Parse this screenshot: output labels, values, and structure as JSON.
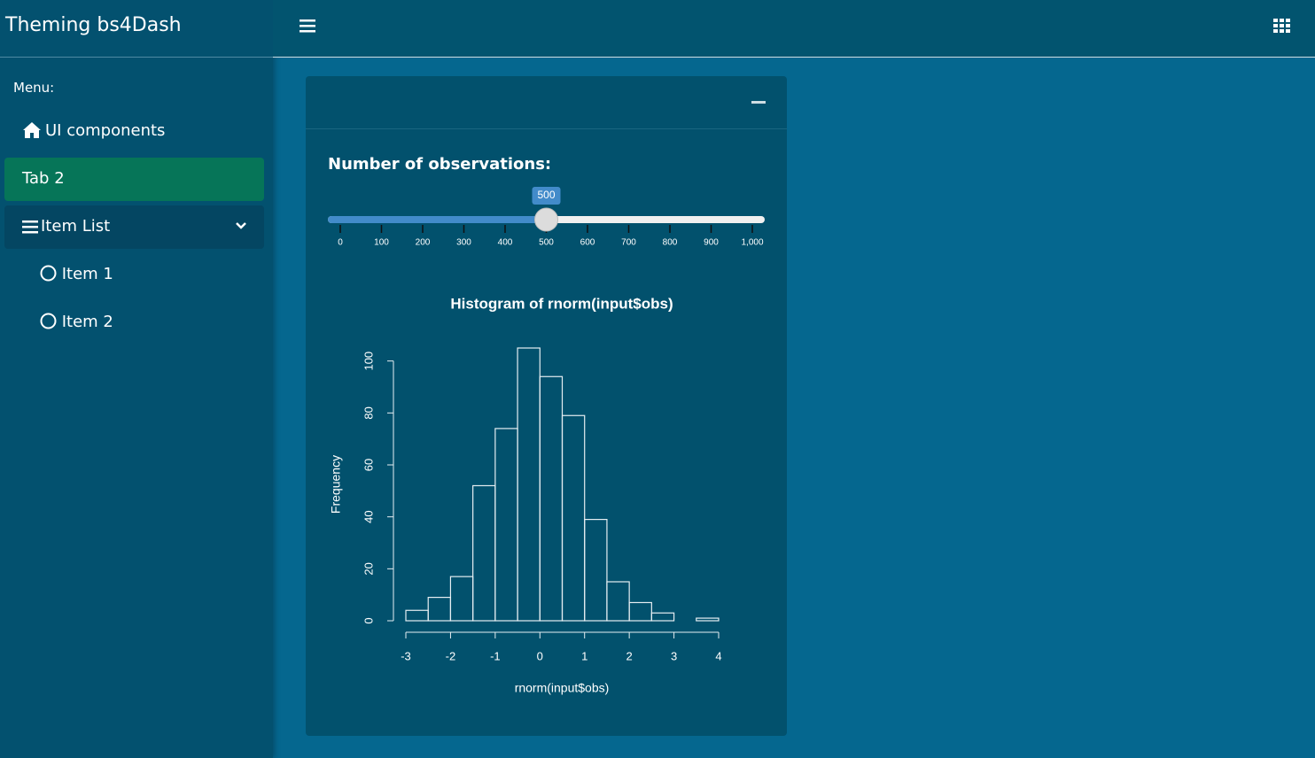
{
  "header": {
    "brand": "Theming bs4Dash"
  },
  "sidebar": {
    "heading": "Menu:",
    "items": [
      "UI components",
      "Tab 2",
      "Item List"
    ],
    "subitems": [
      "Item 1",
      "Item 2"
    ]
  },
  "slider": {
    "label": "Number of observations:",
    "min": 0,
    "max": 1000,
    "value": 500,
    "ticks": [
      0,
      100,
      200,
      300,
      400,
      500,
      600,
      700,
      800,
      900,
      {
        "value": 1000,
        "label": "1,000"
      }
    ]
  },
  "chart_data": {
    "type": "histogram",
    "title": "Histogram of rnorm(input$obs)",
    "x_label": "rnorm(input$obs)",
    "y_label": "Frequency",
    "bins": [
      -3,
      -2.5,
      -2,
      -1.5,
      -1,
      -0.5,
      0,
      0.5,
      1,
      1.5,
      2,
      2.5,
      3,
      3.5,
      4
    ],
    "values": [
      4,
      9,
      17,
      52,
      74,
      105,
      94,
      79,
      39,
      15,
      7,
      3,
      0,
      1
    ],
    "color": "#e6eef2",
    "xlim": [
      -3,
      4
    ],
    "xticks": [
      -3,
      -2,
      -1,
      0,
      1,
      2,
      3,
      4
    ],
    "ylim": [
      0,
      105
    ],
    "yticks": [
      0,
      20,
      40,
      60,
      80,
      100
    ]
  }
}
